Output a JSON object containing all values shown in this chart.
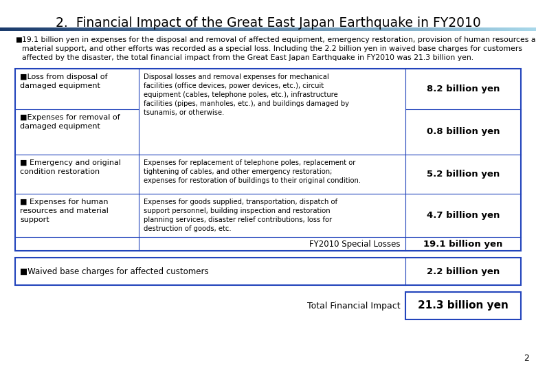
{
  "title": "2.  Financial Impact of the Great East Japan Earthquake in FY2010",
  "title_fontsize": 13.5,
  "bullet_text_line1": "19.1 billion yen in expenses for the disposal and removal of affected equipment, emergency restoration, provision of human resources and",
  "bullet_text_line2": "material support, and other efforts was recorded as a special loss. Including the 2.2 billion yen in waived base charges for customers",
  "bullet_text_line3": "affected by the disaster, the total financial impact from the Great East Japan Earthquake in FY2010 was 21.3 billion yen.",
  "bullet_fontsize": 7.8,
  "table_border_color": "#2244bb",
  "table_rows": [
    {
      "label": "■Loss from disposal of\ndamaged equipment",
      "description": "Disposal losses and removal expenses for mechanical\nfacilities (office devices, power devices, etc.), circuit\nequipment (cables, telephone poles, etc.), infrastructure\nfacilities (pipes, manholes, etc.), and buildings damaged by\ntsunamis, or otherwise.",
      "amount": "8.2 billion yen"
    },
    {
      "label": "■Expenses for removal of\ndamaged equipment",
      "description": "",
      "amount": "0.8 billion yen"
    },
    {
      "label": "■ Emergency and original\ncondition restoration",
      "description": "Expenses for replacement of telephone poles, replacement or\ntightening of cables, and other emergency restoration;\nexpenses for restoration of buildings to their original condition.",
      "amount": "5.2 billion yen"
    },
    {
      "label": "■ Expenses for human\nresources and material\nsupport",
      "description": "Expenses for goods supplied, transportation, dispatch of\nsupport personnel, building inspection and restoration\nplanning services, disaster relief contributions, loss for\ndestruction of goods, etc.",
      "amount": "4.7 billion yen"
    }
  ],
  "subtotal_label": "FY2010 Special Losses",
  "subtotal_amount": "19.1 billion yen",
  "waived_label": "■Waived base charges for affected customers",
  "waived_amount": "2.2 billion yen",
  "total_label": "Total Financial Impact",
  "total_amount": "21.3 billion yen",
  "page_number": "2",
  "background_color": "#ffffff",
  "text_color": "#000000",
  "amount_fontsize": 9.5,
  "label_fontsize": 8.0,
  "desc_fontsize": 7.2,
  "subtotal_label_fontsize": 8.5,
  "gradient_left": "#1a3a6b",
  "gradient_right": "#a8d8ea"
}
